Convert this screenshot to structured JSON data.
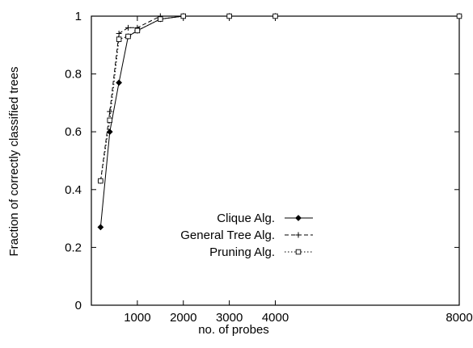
{
  "chart_data": {
    "type": "line",
    "title": "",
    "xlabel": "no. of probes",
    "ylabel": "Fraction of correctly classified trees",
    "xlim": [
      0,
      8000
    ],
    "ylim": [
      0,
      1
    ],
    "xticks": [
      1000,
      2000,
      3000,
      4000,
      8000
    ],
    "yticks": [
      0,
      0.2,
      0.4,
      0.6,
      0.8,
      1
    ],
    "ytick_labels": [
      "0",
      "0.2",
      "0.4",
      "0.6",
      "0.8",
      "1"
    ],
    "grid": false,
    "legend_position": "lower-middle",
    "series": [
      {
        "name": "Clique Alg.",
        "marker": "diamond-filled",
        "line": "solid",
        "x": [
          200,
          400,
          600,
          800,
          1000,
          1500,
          2000,
          3000,
          4000,
          8000
        ],
        "y": [
          0.27,
          0.6,
          0.77,
          0.93,
          0.95,
          0.99,
          1.0,
          1.0,
          1.0,
          1.0
        ]
      },
      {
        "name": "General Tree Alg.",
        "marker": "plus",
        "line": "dashed",
        "x": [
          200,
          400,
          600,
          800,
          1000,
          1500,
          2000,
          3000,
          4000,
          8000
        ],
        "y": [
          0.43,
          0.67,
          0.94,
          0.96,
          0.96,
          1.0,
          1.0,
          1.0,
          1.0,
          1.0
        ]
      },
      {
        "name": "Pruning Alg.",
        "marker": "square-open",
        "line": "dotted",
        "x": [
          200,
          400,
          600,
          800,
          1000,
          1500,
          2000,
          3000,
          4000,
          8000
        ],
        "y": [
          0.43,
          0.64,
          0.92,
          0.93,
          0.95,
          0.99,
          1.0,
          1.0,
          1.0,
          1.0
        ]
      }
    ]
  }
}
